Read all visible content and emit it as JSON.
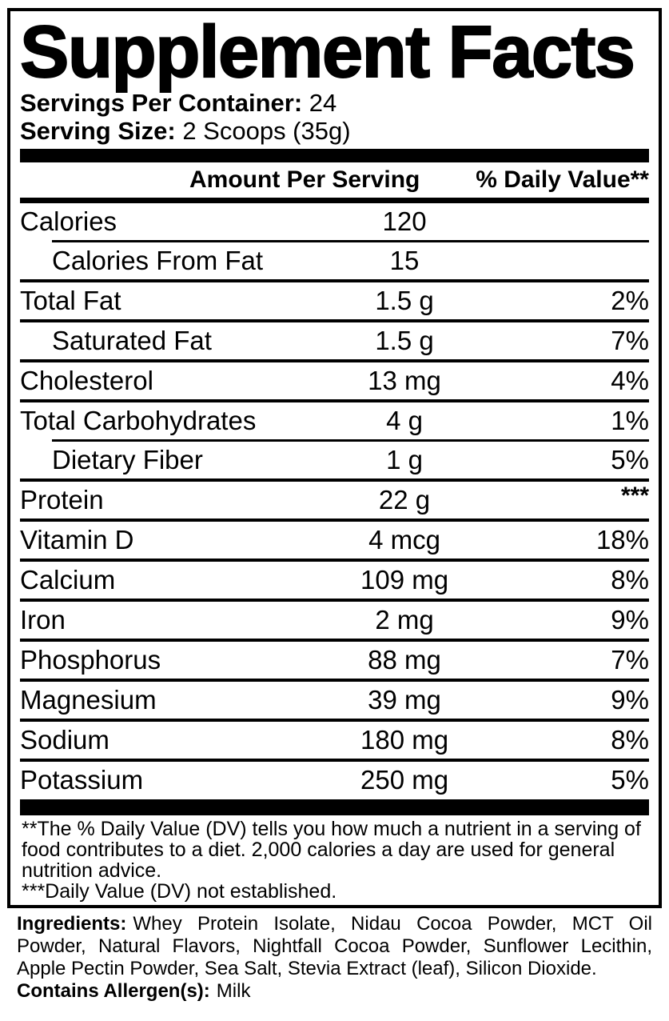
{
  "colors": {
    "text": "#000000",
    "background": "#ffffff"
  },
  "label": {
    "title": "Supplement Facts",
    "servings_per_container_label": "Servings Per Container:",
    "servings_per_container_value": "24",
    "serving_size_label": "Serving Size:",
    "serving_size_value": "2 Scoops (35g)",
    "columns": {
      "amount_header": "Amount Per Serving",
      "daily_value_header": "% Daily Value**"
    },
    "rows": [
      {
        "name": "Calories",
        "amount": "120",
        "dv": "",
        "indent": false,
        "divider_above": "none"
      },
      {
        "name": "Calories From Fat",
        "amount": "15",
        "dv": "",
        "indent": true,
        "divider_above": "indent"
      },
      {
        "name": "Total Fat",
        "amount": "1.5 g",
        "dv": "2%",
        "indent": false,
        "divider_above": "full"
      },
      {
        "name": "Saturated Fat",
        "amount": "1.5 g",
        "dv": "7%",
        "indent": true,
        "divider_above": "full"
      },
      {
        "name": "Cholesterol",
        "amount": "13 mg",
        "dv": "4%",
        "indent": false,
        "divider_above": "full"
      },
      {
        "name": "Total Carbohydrates",
        "amount": "4 g",
        "dv": "1%",
        "indent": false,
        "divider_above": "full"
      },
      {
        "name": "Dietary Fiber",
        "amount": "1 g",
        "dv": "5%",
        "indent": true,
        "divider_above": "indent"
      },
      {
        "name": "Protein",
        "amount": "22 g",
        "dv": "***",
        "indent": false,
        "divider_above": "full"
      },
      {
        "name": "Vitamin D",
        "amount": "4 mcg",
        "dv": "18%",
        "indent": false,
        "divider_above": "full"
      },
      {
        "name": "Calcium",
        "amount": "109 mg",
        "dv": "8%",
        "indent": false,
        "divider_above": "full"
      },
      {
        "name": "Iron",
        "amount": "2 mg",
        "dv": "9%",
        "indent": false,
        "divider_above": "full"
      },
      {
        "name": "Phosphorus",
        "amount": "88 mg",
        "dv": "7%",
        "indent": false,
        "divider_above": "full"
      },
      {
        "name": "Magnesium",
        "amount": "39 mg",
        "dv": "9%",
        "indent": false,
        "divider_above": "full"
      },
      {
        "name": "Sodium",
        "amount": "180 mg",
        "dv": "8%",
        "indent": false,
        "divider_above": "full"
      },
      {
        "name": "Potassium",
        "amount": "250 mg",
        "dv": "5%",
        "indent": false,
        "divider_above": "full"
      }
    ],
    "footnotes": [
      "**The % Daily Value (DV) tells you how much a nutrient in a serving of food contributes to a diet. 2,000 calories a day are used for general nutrition advice.",
      "***Daily Value (DV) not established."
    ]
  },
  "ingredients": {
    "label": "Ingredients:",
    "text": "Whey Protein Isolate, Nidau Cocoa Powder, MCT Oil Powder, Natural Flavors, Nightfall Cocoa Powder, Sunflower Lecithin, Apple Pectin Powder, Sea Salt, Stevia Extract (leaf), Silicon Dioxide.",
    "allergen_label": "Contains Allergen(s):",
    "allergen_value": "Milk"
  }
}
